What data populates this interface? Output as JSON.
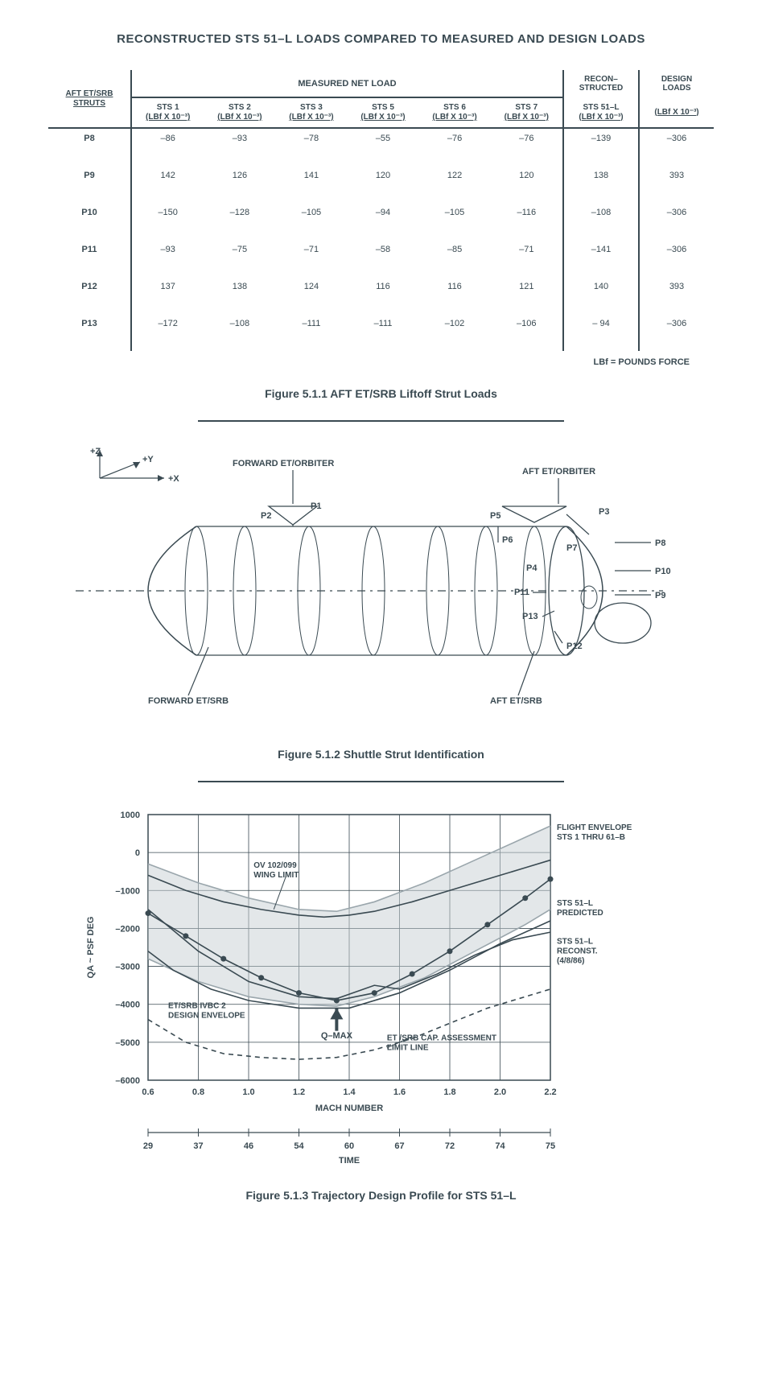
{
  "page_title": "RECONSTRUCTED STS 51–L LOADS COMPARED TO MEASURED AND DESIGN LOADS",
  "table": {
    "group_headers": {
      "measured": "MEASURED NET LOAD",
      "recon": "RECON–\nSTRUCTED",
      "design": "DESIGN\nLOADS"
    },
    "row_header_label": "AFT ET/SRB\nSTRUTS",
    "unit_template_a": "STS {n}",
    "unit_template_b": "(LBf X 10⁻³)",
    "columns_sts": [
      "1",
      "2",
      "3",
      "5",
      "6",
      "7"
    ],
    "recon_col": "STS 51–L",
    "rows": [
      {
        "strut": "P8",
        "vals": [
          "–86",
          "–93",
          "–78",
          "–55",
          "–76",
          "–76"
        ],
        "recon": "–139",
        "design": "–306"
      },
      {
        "strut": "P9",
        "vals": [
          "142",
          "126",
          "141",
          "120",
          "122",
          "120"
        ],
        "recon": "138",
        "design": "393"
      },
      {
        "strut": "P10",
        "vals": [
          "–150",
          "–128",
          "–105",
          "–94",
          "–105",
          "–116"
        ],
        "recon": "–108",
        "design": "–306"
      },
      {
        "strut": "P11",
        "vals": [
          "–93",
          "–75",
          "–71",
          "–58",
          "–85",
          "–71"
        ],
        "recon": "–141",
        "design": "–306"
      },
      {
        "strut": "P12",
        "vals": [
          "137",
          "138",
          "124",
          "116",
          "116",
          "121"
        ],
        "recon": "140",
        "design": "393"
      },
      {
        "strut": "P13",
        "vals": [
          "–172",
          "–108",
          "–111",
          "–111",
          "–102",
          "–106"
        ],
        "recon": "– 94",
        "design": "–306"
      }
    ],
    "footnote": "LBf = POUNDS FORCE"
  },
  "fig1": {
    "caption": "Figure 5.1.1  AFT ET/SRB Liftoff Strut Loads"
  },
  "fig2": {
    "caption": "Figure 5.1.2  Shuttle Strut Identification",
    "axes": {
      "z": "+Z",
      "y": "+Y",
      "x": "+X"
    },
    "labels": {
      "fwd_orbiter": "FORWARD ET/ORBITER",
      "aft_orbiter": "AFT ET/ORBITER",
      "fwd_srb": "FORWARD ET/SRB",
      "aft_srb": "AFT ET/SRB"
    },
    "struts": [
      "P1",
      "P2",
      "P3",
      "P4",
      "P5",
      "P6",
      "P7",
      "P8",
      "P9",
      "P10",
      "P11",
      "P12",
      "P13"
    ],
    "stroke": "#3a4a52"
  },
  "fig3": {
    "caption": "Figure 5.1.3  Trajectory Design Profile for STS 51–L",
    "y_label": "QA ~ PSF DEG",
    "x_label": "MACH NUMBER",
    "x_ticks": [
      0.6,
      0.8,
      1.0,
      1.2,
      1.4,
      1.6,
      1.8,
      2.0,
      2.2
    ],
    "y_ticks": [
      1000,
      0,
      -1000,
      -2000,
      -3000,
      -4000,
      -5000,
      -6000
    ],
    "time_label": "TIME",
    "time_ticks": [
      29,
      37,
      46,
      54,
      60,
      67,
      72,
      74,
      75
    ],
    "annotations": {
      "wing": "OV 102/099\nWING LIMIT",
      "flight_env": "FLIGHT ENVELOPE\nSTS 1 THRU 61–B",
      "predicted": "STS 51–L\nPREDICTED",
      "reconst": "STS 51–L\nRECONST.\n(4/8/86)",
      "ivbc": "ET/SRB IVBC 2\nDESIGN ENVELOPE",
      "cap": "ET /SRB CAP. ASSESSMENT\nLIMIT LINE",
      "qmax": "Q–MAX"
    },
    "series": {
      "wing_limit": {
        "color": "#3a4a52",
        "dash": "",
        "pts": [
          [
            0.6,
            -600
          ],
          [
            0.75,
            -1000
          ],
          [
            0.9,
            -1300
          ],
          [
            1.05,
            -1500
          ],
          [
            1.2,
            -1650
          ],
          [
            1.3,
            -1700
          ],
          [
            1.4,
            -1650
          ],
          [
            1.5,
            -1550
          ],
          [
            1.65,
            -1300
          ],
          [
            1.8,
            -1000
          ],
          [
            1.95,
            -700
          ],
          [
            2.1,
            -400
          ],
          [
            2.2,
            -200
          ]
        ]
      },
      "flight_env_top": {
        "color": "#9aa6ac",
        "dash": "",
        "pts": [
          [
            0.6,
            -300
          ],
          [
            0.8,
            -800
          ],
          [
            1.0,
            -1200
          ],
          [
            1.2,
            -1500
          ],
          [
            1.35,
            -1550
          ],
          [
            1.5,
            -1300
          ],
          [
            1.7,
            -800
          ],
          [
            1.9,
            -200
          ],
          [
            2.1,
            400
          ],
          [
            2.2,
            700
          ]
        ]
      },
      "flight_env_bot": {
        "color": "#9aa6ac",
        "dash": "",
        "pts": [
          [
            0.6,
            -2800
          ],
          [
            0.8,
            -3400
          ],
          [
            1.0,
            -3800
          ],
          [
            1.2,
            -4000
          ],
          [
            1.35,
            -4050
          ],
          [
            1.5,
            -3800
          ],
          [
            1.7,
            -3300
          ],
          [
            1.9,
            -2600
          ],
          [
            2.1,
            -1900
          ],
          [
            2.2,
            -1500
          ]
        ]
      },
      "predicted": {
        "color": "#3a4a52",
        "dash": "",
        "marker": true,
        "pts": [
          [
            0.6,
            -1600
          ],
          [
            0.75,
            -2200
          ],
          [
            0.9,
            -2800
          ],
          [
            1.05,
            -3300
          ],
          [
            1.2,
            -3700
          ],
          [
            1.35,
            -3900
          ],
          [
            1.5,
            -3700
          ],
          [
            1.65,
            -3200
          ],
          [
            1.8,
            -2600
          ],
          [
            1.95,
            -1900
          ],
          [
            2.1,
            -1200
          ],
          [
            2.2,
            -700
          ]
        ]
      },
      "reconst": {
        "color": "#3a4a52",
        "dash": "",
        "pts": [
          [
            0.6,
            -1500
          ],
          [
            0.8,
            -2600
          ],
          [
            1.0,
            -3400
          ],
          [
            1.2,
            -3800
          ],
          [
            1.35,
            -3850
          ],
          [
            1.5,
            -3500
          ],
          [
            1.6,
            -3600
          ],
          [
            1.75,
            -3200
          ],
          [
            1.9,
            -2700
          ],
          [
            2.05,
            -2300
          ],
          [
            2.2,
            -2100
          ]
        ]
      },
      "ivbc": {
        "color": "#3a4a52",
        "dash": "",
        "pts": [
          [
            0.6,
            -2600
          ],
          [
            0.7,
            -3100
          ],
          [
            0.85,
            -3600
          ],
          [
            1.0,
            -3900
          ],
          [
            1.2,
            -4100
          ],
          [
            1.4,
            -4100
          ],
          [
            1.6,
            -3700
          ],
          [
            1.8,
            -3100
          ],
          [
            2.0,
            -2400
          ],
          [
            2.2,
            -1800
          ]
        ]
      },
      "cap_limit": {
        "color": "#3a4a52",
        "dash": "6,5",
        "pts": [
          [
            0.6,
            -4400
          ],
          [
            0.75,
            -5000
          ],
          [
            0.9,
            -5300
          ],
          [
            1.05,
            -5400
          ],
          [
            1.2,
            -5450
          ],
          [
            1.35,
            -5400
          ],
          [
            1.5,
            -5200
          ],
          [
            1.65,
            -4900
          ],
          [
            1.8,
            -4500
          ],
          [
            1.95,
            -4100
          ],
          [
            2.1,
            -3800
          ],
          [
            2.2,
            -3600
          ]
        ]
      }
    },
    "grid_color": "#3a4a52",
    "xlim": [
      0.6,
      2.2
    ],
    "ylim": [
      -6000,
      1000
    ]
  }
}
